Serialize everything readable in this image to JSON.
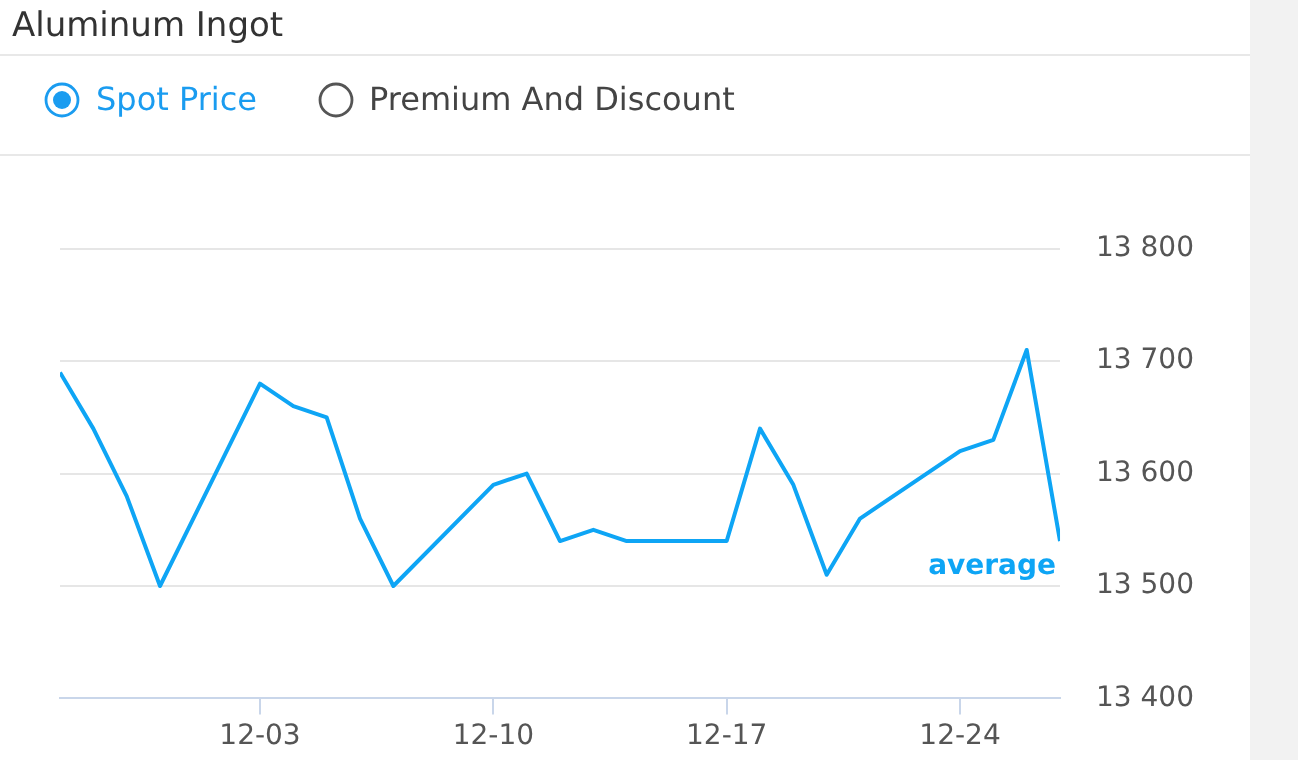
{
  "chart_data": {
    "type": "line",
    "title": "Aluminum Ingot",
    "annotations": [
      "Spot Price",
      "Premium And Discount"
    ],
    "x": [
      "--11-27",
      "--11-28",
      "--11-29",
      "--11-30",
      "--12-03",
      "--12-04",
      "--12-05",
      "--12-06",
      "--12-07",
      "--12-10",
      "--12-11",
      "--12-12",
      "--12-13",
      "--12-14",
      "--12-17",
      "--12-18",
      "--12-19",
      "--12-20",
      "--12-21",
      "--12-24",
      "--12-25",
      "--12-26",
      "--12-27"
    ],
    "series": [
      {
        "name": "average",
        "color": "#0ea5f5",
        "values": [
          13690,
          13640,
          13580,
          13500,
          13680,
          13660,
          13650,
          13560,
          13500,
          13590,
          13600,
          13540,
          13550,
          13540,
          13540,
          13640,
          13590,
          13510,
          13560,
          13620,
          13630,
          13710,
          13540
        ]
      }
    ],
    "xlim": [
      "--11-27",
      "--12-27"
    ],
    "xticks": [
      {
        "value": "--12-03",
        "label": "12-03"
      },
      {
        "value": "--12-10",
        "label": "12-10"
      },
      {
        "value": "--12-17",
        "label": "12-17"
      },
      {
        "value": "--12-24",
        "label": "12-24"
      }
    ],
    "ylim": [
      13400,
      13800
    ],
    "yticks": [
      {
        "value": 13400,
        "label": "13 400"
      },
      {
        "value": 13500,
        "label": "13 500"
      },
      {
        "value": 13600,
        "label": "13 600"
      },
      {
        "value": 13700,
        "label": "13 700"
      },
      {
        "value": 13800,
        "label": "13 800"
      }
    ],
    "grid": "y",
    "legend": false,
    "marker": "none",
    "line_style": "solid"
  }
}
